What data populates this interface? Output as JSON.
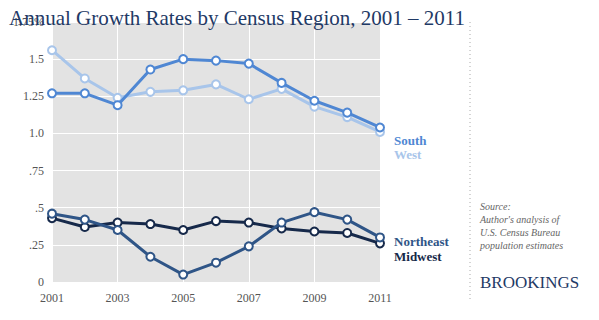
{
  "chart_data": {
    "type": "line",
    "title": "Annual Growth Rates by Census Region, 2001 – 2011",
    "x": [
      2001,
      2002,
      2003,
      2004,
      2005,
      2006,
      2007,
      2008,
      2009,
      2010,
      2011
    ],
    "series": [
      {
        "name": "South",
        "color": "#4f87d3",
        "values": [
          1.27,
          1.27,
          1.19,
          1.43,
          1.5,
          1.49,
          1.47,
          1.34,
          1.22,
          1.14,
          1.04
        ]
      },
      {
        "name": "West",
        "color": "#a8c5ea",
        "values": [
          1.56,
          1.37,
          1.24,
          1.28,
          1.29,
          1.33,
          1.23,
          1.3,
          1.18,
          1.11,
          1.01
        ]
      },
      {
        "name": "Northeast",
        "color": "#2f5587",
        "values": [
          0.46,
          0.42,
          0.35,
          0.17,
          0.05,
          0.13,
          0.24,
          0.4,
          0.47,
          0.42,
          0.3
        ]
      },
      {
        "name": "Midwest",
        "color": "#16294a",
        "values": [
          0.43,
          0.37,
          0.4,
          0.39,
          0.35,
          0.41,
          0.4,
          0.36,
          0.34,
          0.33,
          0.26
        ]
      }
    ],
    "xlim": [
      2001,
      2011
    ],
    "xticks": [
      2001,
      2003,
      2005,
      2007,
      2009,
      2011
    ],
    "ylim": [
      0,
      1.75
    ],
    "yticks": [
      0,
      {
        "value": 0.25,
        "label": ".25"
      },
      {
        "value": 0.5,
        "label": ".5"
      },
      {
        "value": 0.75,
        "label": ".75"
      },
      {
        "value": 1.0,
        "label": "1.0"
      },
      1.25,
      1.5,
      {
        "value": 1.75,
        "label": "1.75%"
      }
    ],
    "grid": true,
    "marker": "circle",
    "annotations": [
      "Source:\nAuthor's analysis of\nU.S. Census Bureau\npopulation estimates",
      "BROOKINGS"
    ]
  }
}
